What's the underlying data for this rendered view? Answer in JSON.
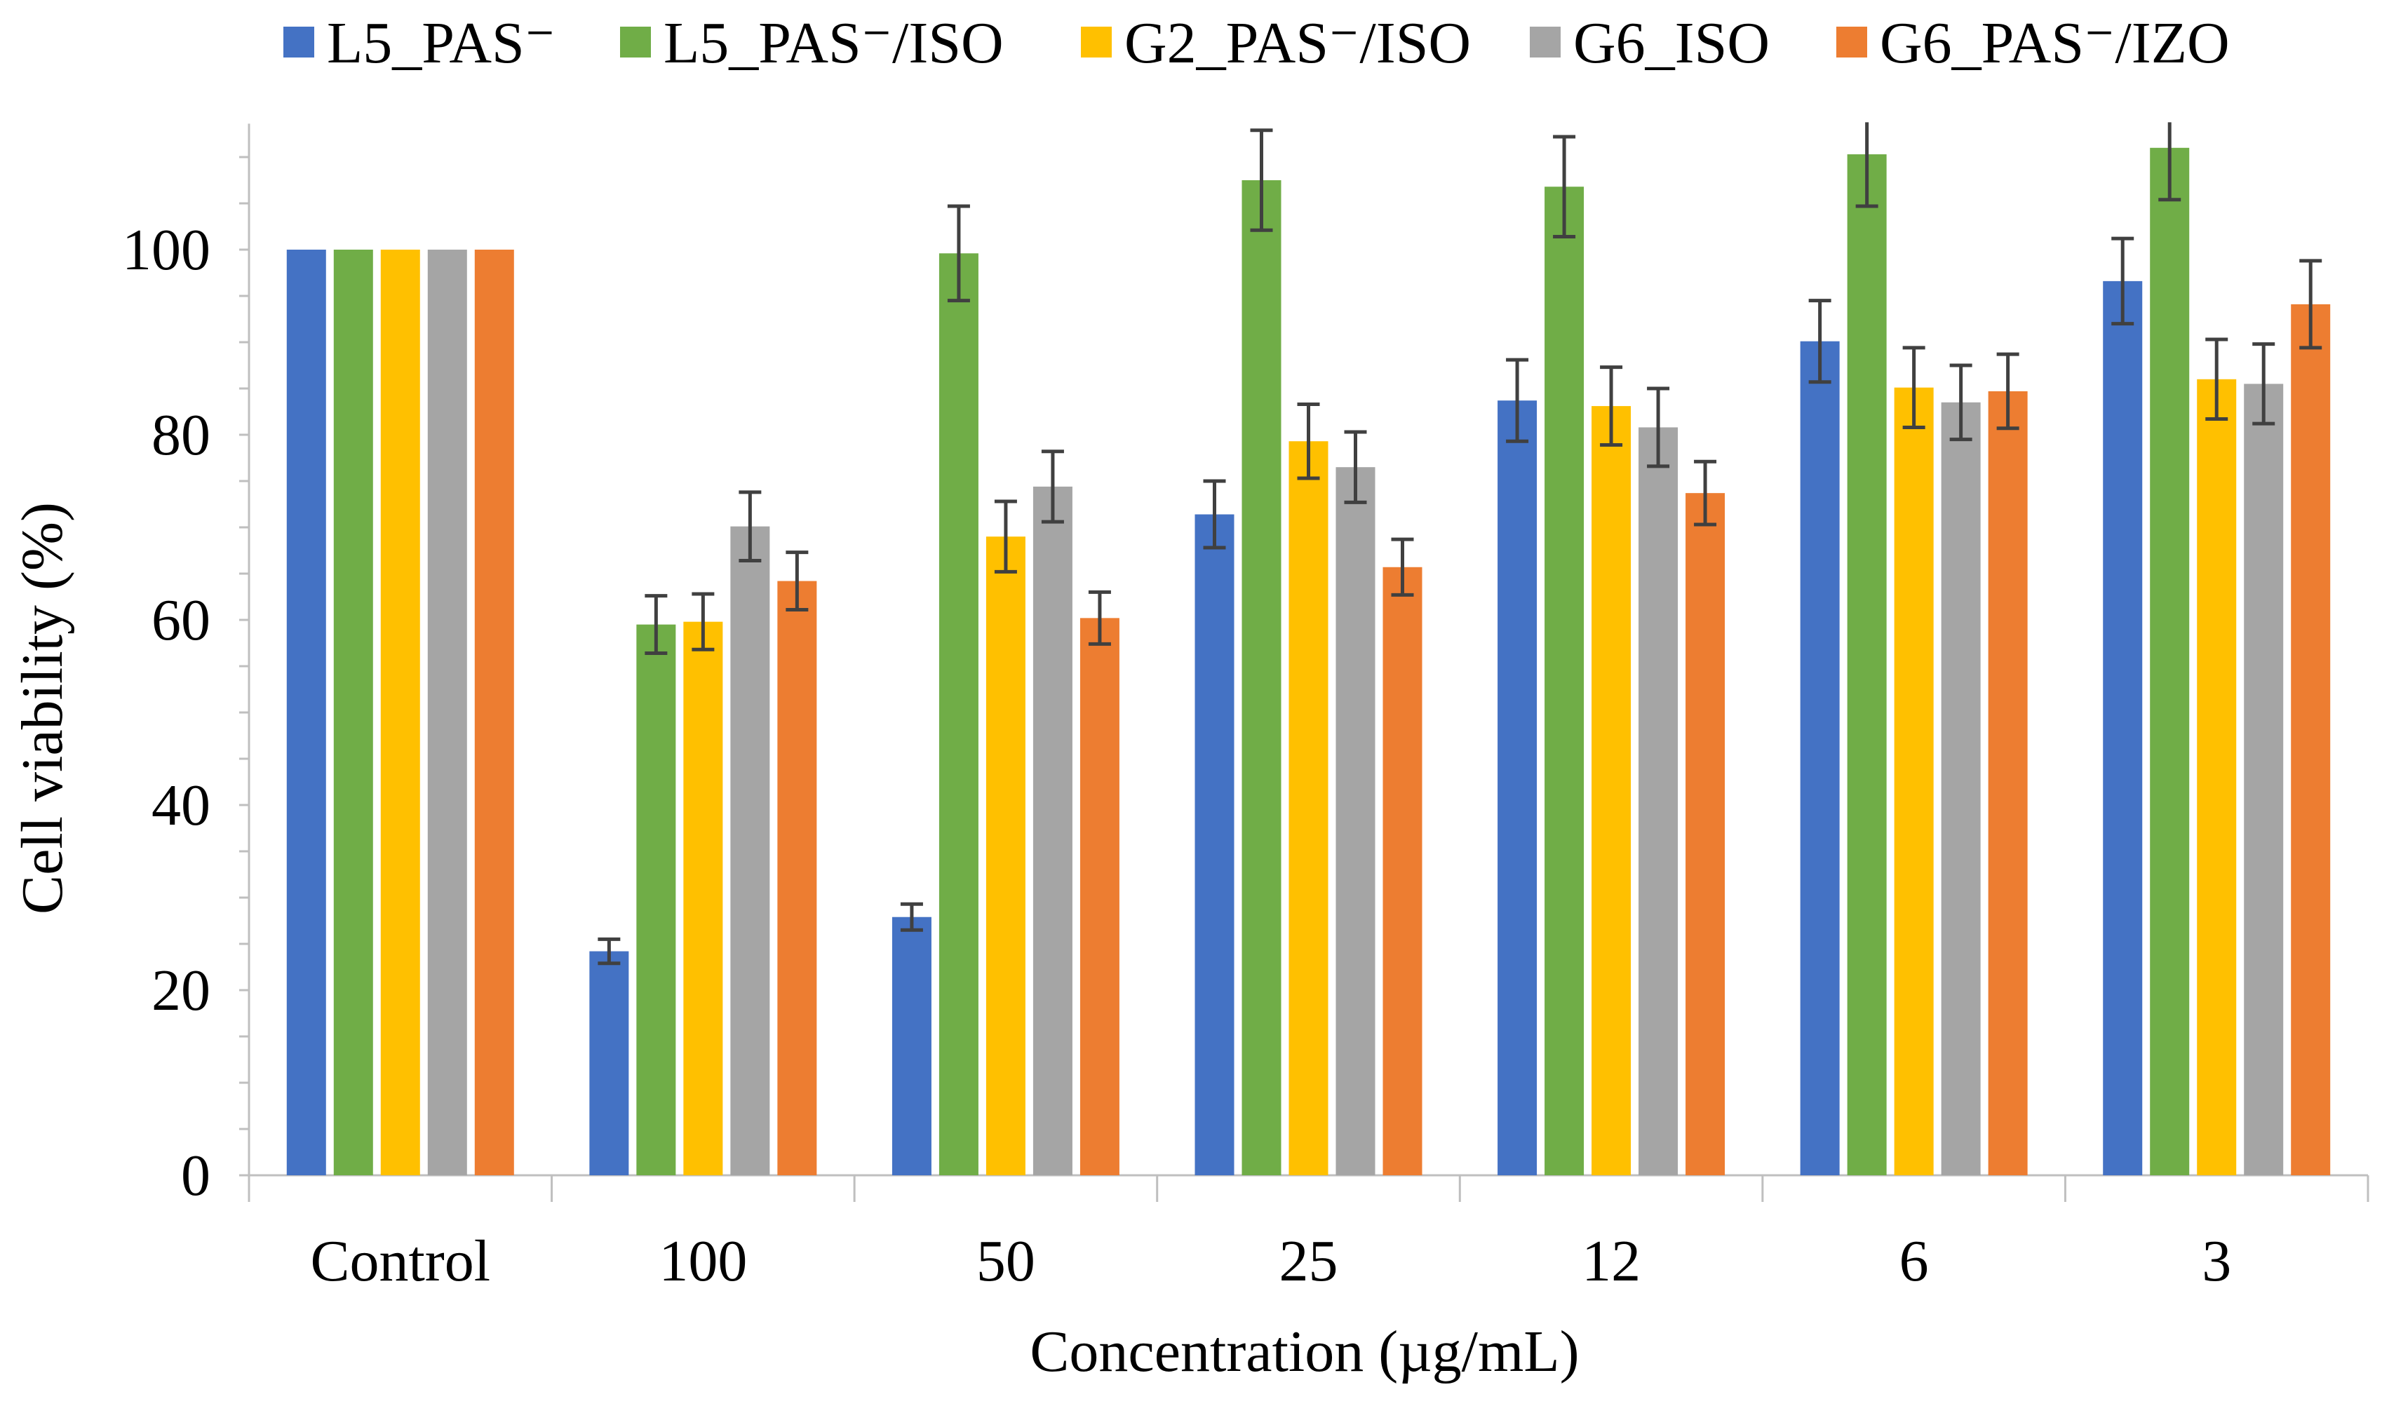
{
  "chart_data": {
    "type": "bar",
    "title": "",
    "xlabel": "Concentration (µg/mL)",
    "ylabel": "Cell viability (%)",
    "ylim": [
      0,
      113
    ],
    "yticks": [
      0,
      20,
      40,
      60,
      80,
      100
    ],
    "ytick_labels": [
      "0",
      "20",
      "40",
      "60",
      "80",
      "100"
    ],
    "minor_tick_step": 5,
    "grid": false,
    "legend_position": "top",
    "categories": [
      "Control",
      "100",
      "50",
      "25",
      "12",
      "6",
      "3"
    ],
    "series": [
      {
        "name": "L5_PAS⁻",
        "color": "#4472C4",
        "values": [
          100,
          24.2,
          27.9,
          71.4,
          83.7,
          90.1,
          96.6
        ],
        "errors": [
          null,
          1.3,
          1.4,
          3.6,
          4.4,
          4.4,
          4.6
        ]
      },
      {
        "name": "L5_PAS⁻/ISO",
        "color": "#70AD47",
        "values": [
          100,
          59.5,
          99.6,
          107.5,
          106.8,
          110.3,
          111.0
        ],
        "errors": [
          null,
          3.1,
          5.1,
          5.4,
          5.4,
          5.6,
          5.6
        ]
      },
      {
        "name": "G2_PAS⁻/ISO",
        "color": "#FFC000",
        "values": [
          100,
          59.8,
          69.0,
          79.3,
          83.1,
          85.1,
          86.0
        ],
        "errors": [
          null,
          3.0,
          3.8,
          4.0,
          4.2,
          4.3,
          4.3
        ]
      },
      {
        "name": "G6_ISO",
        "color": "#A5A5A5",
        "values": [
          100,
          70.1,
          74.4,
          76.5,
          80.8,
          83.5,
          85.5
        ],
        "errors": [
          null,
          3.7,
          3.8,
          3.8,
          4.2,
          4.0,
          4.3
        ]
      },
      {
        "name": "G6_PAS⁻/IZO",
        "color": "#ED7D31",
        "values": [
          100,
          64.2,
          60.2,
          65.7,
          73.7,
          84.7,
          94.1
        ],
        "errors": [
          null,
          3.1,
          2.8,
          3.0,
          3.4,
          4.0,
          4.7
        ]
      }
    ],
    "error_bar_color": "#404040"
  }
}
